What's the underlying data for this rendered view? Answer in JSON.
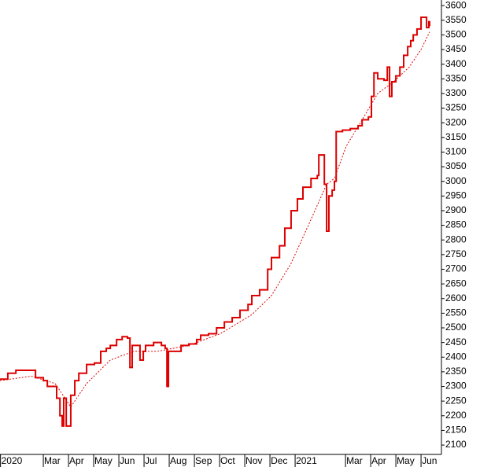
{
  "chart_data": {
    "type": "line",
    "xlim": [
      0.28,
      17.81
    ],
    "xticks": [
      {
        "value": 0.3,
        "label": "2020"
      },
      {
        "value": 2,
        "label": "Mar"
      },
      {
        "value": 3,
        "label": "Apr"
      },
      {
        "value": 4,
        "label": "May"
      },
      {
        "value": 5,
        "label": "Jun"
      },
      {
        "value": 6,
        "label": "Jul"
      },
      {
        "value": 7,
        "label": "Aug"
      },
      {
        "value": 8,
        "label": "Sep"
      },
      {
        "value": 9,
        "label": "Oct"
      },
      {
        "value": 10,
        "label": "Nov"
      },
      {
        "value": 11,
        "label": "Dec"
      },
      {
        "value": 12,
        "label": "2021"
      },
      {
        "value": 14,
        "label": "Mar"
      },
      {
        "value": 15,
        "label": "Apr"
      },
      {
        "value": 16,
        "label": "May"
      },
      {
        "value": 17,
        "label": "Jun"
      }
    ],
    "ylim": [
      2068,
      3619
    ],
    "yticks": [
      2100,
      2150,
      2200,
      2250,
      2300,
      2350,
      2400,
      2450,
      2500,
      2550,
      2600,
      2650,
      2700,
      2750,
      2800,
      2850,
      2900,
      2950,
      3000,
      3050,
      3100,
      3150,
      3200,
      3250,
      3300,
      3350,
      3400,
      3450,
      3500,
      3550,
      3600
    ],
    "series": [
      {
        "color": "#dd0000",
        "step": true,
        "dashed": false,
        "x": [
          0.28,
          0.59,
          0.91,
          1.38,
          1.69,
          2,
          2.16,
          2.41,
          2.53,
          2.66,
          2.75,
          2.81,
          2.91,
          3.03,
          3.09,
          3.25,
          3.41,
          3.72,
          4.03,
          4.28,
          4.5,
          4.66,
          4.91,
          5.13,
          5.34,
          5.44,
          5.53,
          5.66,
          5.84,
          5.97,
          6.06,
          6.22,
          6.38,
          6.69,
          6.84,
          6.91,
          6.97,
          7.16,
          7.47,
          7.78,
          8.09,
          8.25,
          8.56,
          8.88,
          9.19,
          9.5,
          9.81,
          10.13,
          10.28,
          10.59,
          10.91,
          11.06,
          11.38,
          11.59,
          11.84,
          12.09,
          12.31,
          12.63,
          12.88,
          12.94,
          13.09,
          13.16,
          13.25,
          13.34,
          13.47,
          13.56,
          13.63,
          13.88,
          14.19,
          14.5,
          14.66,
          14.91,
          15.03,
          15.13,
          15.28,
          15.53,
          15.66,
          15.75,
          15.84,
          16,
          16.16,
          16.31,
          16.47,
          16.59,
          16.69,
          16.84,
          17,
          17.16,
          17.22,
          17.31,
          17.34
        ],
        "values": [
          2325,
          2345,
          2355,
          2355,
          2330,
          2320,
          2300,
          2300,
          2260,
          2200,
          2165,
          2260,
          2165,
          2165,
          2270,
          2320,
          2345,
          2375,
          2380,
          2420,
          2430,
          2440,
          2460,
          2470,
          2465,
          2365,
          2440,
          2440,
          2390,
          2420,
          2440,
          2440,
          2450,
          2440,
          2430,
          2300,
          2420,
          2420,
          2440,
          2445,
          2460,
          2475,
          2480,
          2500,
          2520,
          2535,
          2560,
          2580,
          2610,
          2630,
          2700,
          2740,
          2780,
          2840,
          2900,
          2940,
          2980,
          3010,
          3020,
          3090,
          3090,
          2990,
          2830,
          2950,
          2970,
          3000,
          3170,
          3175,
          3180,
          3190,
          3210,
          3220,
          3290,
          3370,
          3350,
          3345,
          3390,
          3290,
          3340,
          3360,
          3390,
          3430,
          3460,
          3480,
          3500,
          3520,
          3560,
          3560,
          3525,
          3545,
          3530
        ]
      },
      {
        "color": "#dd0000",
        "step": false,
        "dashed": true,
        "x": [
          0.28,
          1.53,
          2.47,
          2.94,
          3.09,
          3.72,
          4.66,
          5.59,
          6.53,
          7.78,
          9.03,
          10.28,
          11.06,
          11.84,
          12.63,
          13.25,
          13.56,
          14.03,
          14.66,
          15.28,
          15.91,
          16.53,
          17,
          17.34
        ],
        "values": [
          2320,
          2335,
          2310,
          2250,
          2230,
          2310,
          2390,
          2420,
          2420,
          2440,
          2480,
          2545,
          2610,
          2720,
          2870,
          2990,
          3010,
          3120,
          3210,
          3300,
          3340,
          3390,
          3450,
          3510
        ]
      }
    ]
  }
}
